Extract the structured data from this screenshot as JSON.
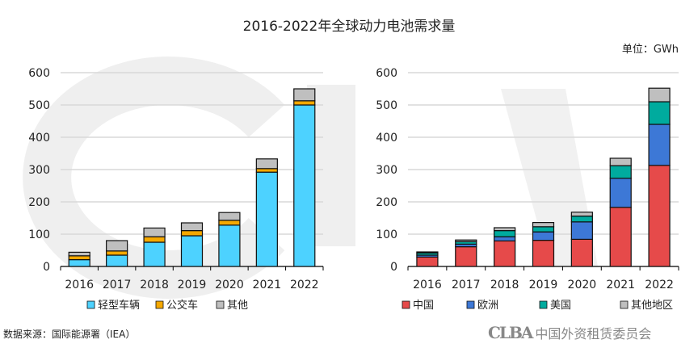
{
  "title": "2016-2022年全球动力电池需求量",
  "unit": "单位：GWh",
  "source": "数据来源：国际能源署（IEA）",
  "logo": {
    "mark": "CLBA",
    "name": "中国外资租赁委员会"
  },
  "chart_data": [
    {
      "type": "bar",
      "stacked": true,
      "categories": [
        "2016",
        "2017",
        "2018",
        "2019",
        "2020",
        "2021",
        "2022"
      ],
      "ylim": [
        0,
        600
      ],
      "yticks": [
        0,
        100,
        200,
        300,
        400,
        500,
        600
      ],
      "grid": true,
      "legend": "bottom",
      "series": [
        {
          "name": "轻型车辆",
          "color": "#4dd2ff",
          "values": [
            21,
            35,
            75,
            95,
            128,
            292,
            500
          ]
        },
        {
          "name": "公交车",
          "color": "#f5a800",
          "values": [
            12,
            13,
            17,
            16,
            15,
            11,
            13
          ]
        },
        {
          "name": "其他",
          "color": "#bfbfbf",
          "values": [
            11,
            32,
            27,
            24,
            24,
            30,
            37
          ]
        }
      ]
    },
    {
      "type": "bar",
      "stacked": true,
      "categories": [
        "2016",
        "2017",
        "2018",
        "2019",
        "2020",
        "2021",
        "2022"
      ],
      "ylim": [
        0,
        600
      ],
      "yticks": [
        0,
        100,
        200,
        300,
        400,
        500,
        600
      ],
      "grid": true,
      "legend": "bottom",
      "series": [
        {
          "name": "中国",
          "color": "#e64a4a",
          "values": [
            29,
            61,
            79,
            81,
            84,
            183,
            313
          ]
        },
        {
          "name": "欧洲",
          "color": "#3d78d6",
          "values": [
            6,
            8,
            13,
            26,
            54,
            90,
            127
          ]
        },
        {
          "name": "美国",
          "color": "#00ab9e",
          "values": [
            7,
            8,
            19,
            16,
            18,
            39,
            70
          ]
        },
        {
          "name": "其他地区",
          "color": "#bfbfbf",
          "values": [
            3,
            5,
            9,
            13,
            12,
            23,
            42
          ]
        }
      ]
    }
  ]
}
